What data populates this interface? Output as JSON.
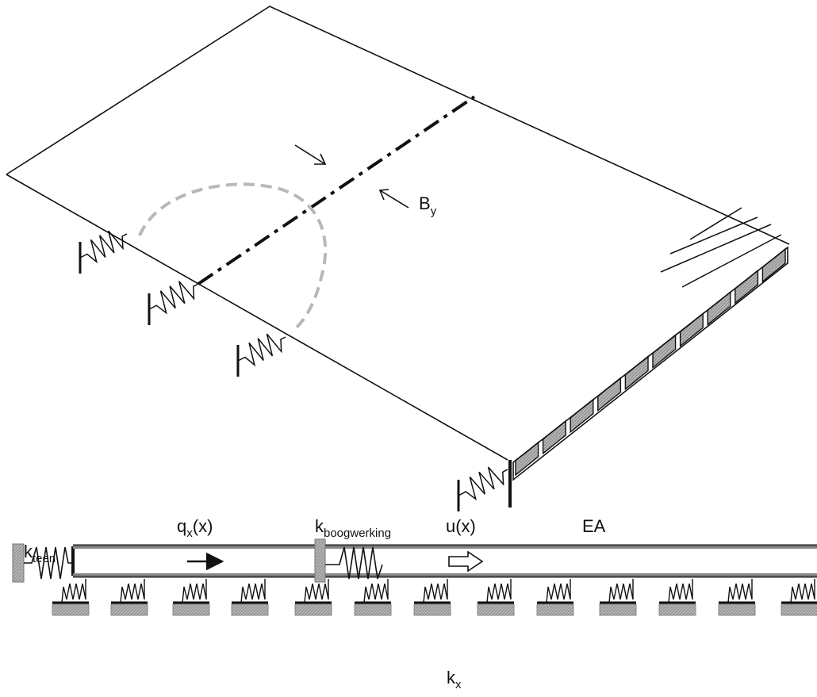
{
  "labels": {
    "by": {
      "main": "B",
      "sub": "y"
    },
    "kteen": {
      "main": "k",
      "sub": "teen"
    },
    "qx": {
      "main": "q",
      "sub": "x",
      "rest": "(x)"
    },
    "kboog": {
      "main": "k",
      "sub": "boogwerking"
    },
    "ux": "u(x)",
    "ea": "EA",
    "kx": {
      "main": "k",
      "sub": "x"
    }
  },
  "colors": {
    "line": "#111111",
    "hatch": "#aaaaaa",
    "dashed_circle": "#b8b8b8"
  }
}
